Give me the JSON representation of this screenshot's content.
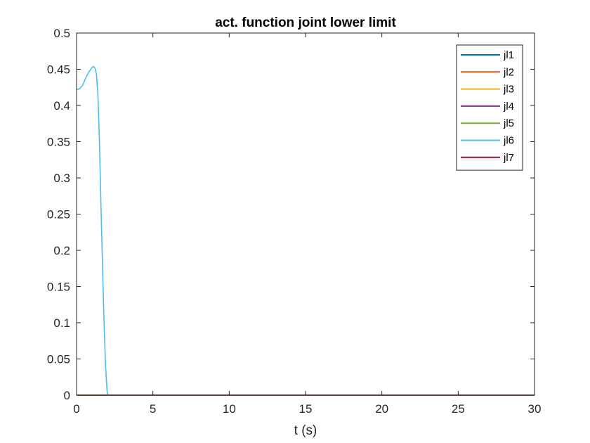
{
  "chart_data": {
    "type": "line",
    "title": "act. function joint lower limit",
    "xlabel": "t (s)",
    "ylabel": "",
    "xlim": [
      0,
      30
    ],
    "ylim": [
      0,
      0.5
    ],
    "xticks": [
      0,
      5,
      10,
      15,
      20,
      25,
      30
    ],
    "xtick_labels": [
      "0",
      "5",
      "10",
      "15",
      "20",
      "25",
      "30"
    ],
    "yticks": [
      0,
      0.05,
      0.1,
      0.15,
      0.2,
      0.25,
      0.3,
      0.35,
      0.4,
      0.45,
      0.5
    ],
    "ytick_labels": [
      "0",
      "0.05",
      "0.1",
      "0.15",
      "0.2",
      "0.25",
      "0.3",
      "0.35",
      "0.4",
      "0.45",
      "0.5"
    ],
    "grid": false,
    "legend_position": "top-right",
    "series": [
      {
        "name": "jl1",
        "color": "#0072BD",
        "x": [
          0,
          30
        ],
        "y": [
          0,
          0
        ]
      },
      {
        "name": "jl2",
        "color": "#D95319",
        "x": [
          0,
          30
        ],
        "y": [
          0,
          0
        ]
      },
      {
        "name": "jl3",
        "color": "#EDB120",
        "x": [
          0,
          30
        ],
        "y": [
          0,
          0
        ]
      },
      {
        "name": "jl4",
        "color": "#7E2F8E",
        "x": [
          0,
          30
        ],
        "y": [
          0,
          0
        ]
      },
      {
        "name": "jl5",
        "color": "#77AC30",
        "x": [
          0,
          30
        ],
        "y": [
          0,
          0
        ]
      },
      {
        "name": "jl6",
        "color": "#4DBEEE",
        "x": [
          0,
          0.2,
          0.4,
          0.6,
          0.8,
          1.0,
          1.1,
          1.2,
          1.3,
          1.4,
          1.5,
          1.6,
          1.7,
          1.8,
          1.9,
          2.0,
          2.05,
          3,
          30
        ],
        "y": [
          0.422,
          0.423,
          0.428,
          0.438,
          0.446,
          0.452,
          0.454,
          0.452,
          0.444,
          0.415,
          0.35,
          0.26,
          0.18,
          0.1,
          0.04,
          0.005,
          0,
          0,
          0
        ]
      },
      {
        "name": "jl7",
        "color": "#A2142F",
        "x": [
          0,
          30
        ],
        "y": [
          0,
          0
        ]
      }
    ]
  }
}
